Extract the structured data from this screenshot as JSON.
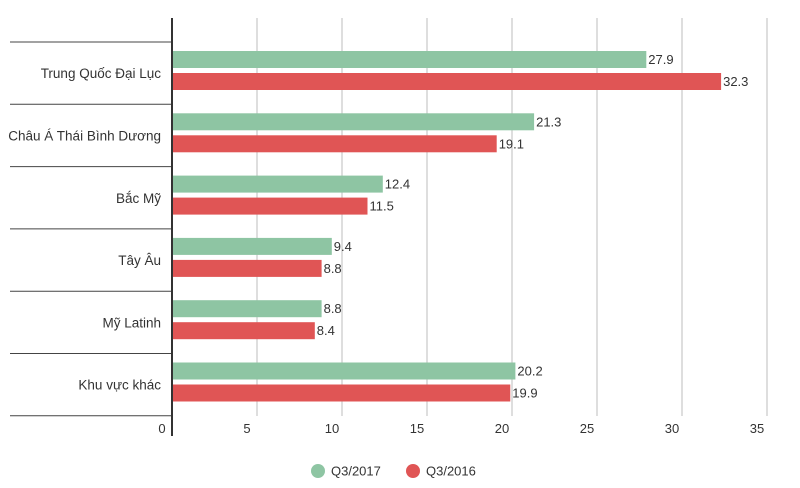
{
  "chart_data": {
    "type": "bar",
    "orientation": "horizontal",
    "categories": [
      "Trung Quốc Đại Lục",
      "Châu Á Thái Bình Dương",
      "Bắc Mỹ",
      "Tây Âu",
      "Mỹ Latinh",
      "Khu vực khác"
    ],
    "series": [
      {
        "name": "Q3/2017",
        "color": "#8ec5a3",
        "values": [
          27.9,
          21.3,
          12.4,
          9.4,
          8.8,
          20.2
        ]
      },
      {
        "name": "Q3/2016",
        "color": "#e05555",
        "values": [
          32.3,
          19.1,
          11.5,
          8.8,
          8.4,
          19.9
        ]
      }
    ],
    "xlim": [
      0,
      35
    ],
    "xticks": [
      0,
      5,
      10,
      15,
      20,
      25,
      30,
      35
    ],
    "grid": true,
    "legend_position": "bottom-center",
    "title": "",
    "xlabel": "",
    "ylabel": ""
  }
}
